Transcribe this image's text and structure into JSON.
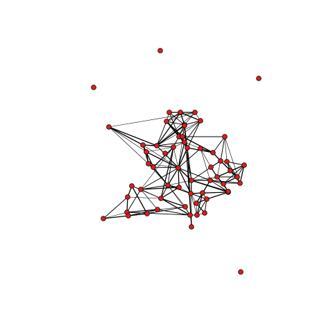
{
  "graph": {
    "node_color": "#e31a1c",
    "node_stroke": "#000000",
    "edge_color": "#000000",
    "nodes": [
      {
        "id": "n1"
      },
      {
        "id": "n2"
      },
      {
        "id": "n3"
      },
      {
        "id": "n4"
      },
      {
        "id": "n5"
      },
      {
        "id": "n6"
      },
      {
        "id": "n7"
      },
      {
        "id": "n8"
      },
      {
        "id": "n9"
      },
      {
        "id": "n10"
      },
      {
        "id": "n11"
      },
      {
        "id": "n12"
      },
      {
        "id": "n13"
      },
      {
        "id": "n14"
      },
      {
        "id": "n15"
      },
      {
        "id": "n16"
      },
      {
        "id": "n17"
      },
      {
        "id": "n18"
      },
      {
        "id": "n19"
      },
      {
        "id": "n20"
      },
      {
        "id": "n21"
      },
      {
        "id": "n22"
      },
      {
        "id": "n23"
      },
      {
        "id": "n24"
      },
      {
        "id": "n25"
      },
      {
        "id": "n26"
      },
      {
        "id": "n27"
      },
      {
        "id": "n28"
      },
      {
        "id": "n29"
      },
      {
        "id": "n30"
      },
      {
        "id": "n31"
      },
      {
        "id": "n32"
      },
      {
        "id": "n33"
      },
      {
        "id": "n34"
      },
      {
        "id": "n35"
      },
      {
        "id": "n36"
      },
      {
        "id": "n37"
      },
      {
        "id": "n38"
      },
      {
        "id": "n39"
      },
      {
        "id": "n40"
      },
      {
        "id": "n41"
      },
      {
        "id": "n42"
      },
      {
        "id": "n43"
      },
      {
        "id": "n44"
      },
      {
        "id": "n45"
      },
      {
        "id": "n46"
      },
      {
        "id": "n47"
      },
      {
        "id": "n48"
      },
      {
        "id": "n49"
      },
      {
        "id": "n50"
      },
      {
        "id": "n51"
      },
      {
        "id": "n52"
      },
      {
        "id": "n53"
      },
      {
        "id": "n54"
      },
      {
        "id": "n55"
      },
      {
        "id": "n56"
      },
      {
        "id": "n57"
      },
      {
        "id": "n58"
      },
      {
        "id": "n59"
      },
      {
        "id": "n60"
      }
    ],
    "edges": [
      [
        "n7",
        "n12"
      ],
      [
        "n5",
        "n6"
      ],
      [
        "n5",
        "n7"
      ],
      [
        "n5",
        "n8"
      ],
      [
        "n6",
        "n7"
      ],
      [
        "n6",
        "n8"
      ],
      [
        "n7",
        "n8"
      ],
      [
        "n5",
        "n9"
      ],
      [
        "n6",
        "n9"
      ],
      [
        "n7",
        "n9"
      ],
      [
        "n8",
        "n9"
      ],
      [
        "n6",
        "n10"
      ],
      [
        "n7",
        "n10"
      ],
      [
        "n9",
        "n10"
      ],
      [
        "n9",
        "n11"
      ],
      [
        "n10",
        "n11"
      ],
      [
        "n5",
        "n11"
      ],
      [
        "n8",
        "n11"
      ],
      [
        "n11",
        "n21"
      ],
      [
        "n10",
        "n21"
      ],
      [
        "n6",
        "n14"
      ],
      [
        "n7",
        "n14"
      ],
      [
        "n8",
        "n14"
      ],
      [
        "n9",
        "n14"
      ],
      [
        "n10",
        "n14"
      ],
      [
        "n14",
        "n21"
      ],
      [
        "n8",
        "n23"
      ],
      [
        "n9",
        "n23"
      ],
      [
        "n11",
        "n23"
      ],
      [
        "n12",
        "n13"
      ],
      [
        "n12",
        "n15"
      ],
      [
        "n13",
        "n15"
      ],
      [
        "n13",
        "n14"
      ],
      [
        "n12",
        "n16"
      ],
      [
        "n13",
        "n16"
      ],
      [
        "n15",
        "n16"
      ],
      [
        "n15",
        "n17"
      ],
      [
        "n16",
        "n17"
      ],
      [
        "n13",
        "n17"
      ],
      [
        "n14",
        "n19"
      ],
      [
        "n13",
        "n19"
      ],
      [
        "n17",
        "n19"
      ],
      [
        "n19",
        "n20"
      ],
      [
        "n17",
        "n20"
      ],
      [
        "n15",
        "n20"
      ],
      [
        "n16",
        "n20"
      ],
      [
        "n14",
        "n20"
      ],
      [
        "n20",
        "n21"
      ],
      [
        "n19",
        "n21"
      ],
      [
        "n20",
        "n22"
      ],
      [
        "n21",
        "n22"
      ],
      [
        "n22",
        "n23"
      ],
      [
        "n23",
        "n26"
      ],
      [
        "n22",
        "n25"
      ],
      [
        "n21",
        "n24"
      ],
      [
        "n20",
        "n24"
      ],
      [
        "n24",
        "n25"
      ],
      [
        "n24",
        "n27"
      ],
      [
        "n25",
        "n26"
      ],
      [
        "n25",
        "n28"
      ],
      [
        "n26",
        "n29"
      ],
      [
        "n26",
        "n28"
      ],
      [
        "n27",
        "n28"
      ],
      [
        "n28",
        "n29"
      ],
      [
        "n28",
        "n30"
      ],
      [
        "n29",
        "n30"
      ],
      [
        "n30",
        "n31"
      ],
      [
        "n29",
        "n31"
      ],
      [
        "n28",
        "n32"
      ],
      [
        "n30",
        "n32"
      ],
      [
        "n31",
        "n32"
      ],
      [
        "n31",
        "n33"
      ],
      [
        "n32",
        "n33"
      ],
      [
        "n30",
        "n33"
      ],
      [
        "n27",
        "n34"
      ],
      [
        "n28",
        "n34"
      ],
      [
        "n32",
        "n34"
      ],
      [
        "n34",
        "n35"
      ],
      [
        "n33",
        "n35"
      ],
      [
        "n31",
        "n35"
      ],
      [
        "n32",
        "n35"
      ],
      [
        "n34",
        "n36"
      ],
      [
        "n35",
        "n36"
      ],
      [
        "n33",
        "n36"
      ],
      [
        "n24",
        "n36"
      ],
      [
        "n20",
        "n36"
      ],
      [
        "n20",
        "n37"
      ],
      [
        "n22",
        "n37"
      ],
      [
        "n27",
        "n37"
      ],
      [
        "n36",
        "n37"
      ],
      [
        "n34",
        "n37"
      ],
      [
        "n19",
        "n38"
      ],
      [
        "n20",
        "n38"
      ],
      [
        "n37",
        "n38"
      ],
      [
        "n38",
        "n39"
      ],
      [
        "n20",
        "n39"
      ],
      [
        "n19",
        "n40"
      ],
      [
        "n38",
        "n40"
      ],
      [
        "n39",
        "n40"
      ],
      [
        "n40",
        "n41"
      ],
      [
        "n38",
        "n41"
      ],
      [
        "n39",
        "n41"
      ],
      [
        "n40",
        "n42"
      ],
      [
        "n41",
        "n42"
      ],
      [
        "n42",
        "n43"
      ],
      [
        "n41",
        "n43"
      ],
      [
        "n40",
        "n44"
      ],
      [
        "n43",
        "n44"
      ],
      [
        "n44",
        "n45"
      ],
      [
        "n43",
        "n45"
      ],
      [
        "n44",
        "n46"
      ],
      [
        "n45",
        "n46"
      ],
      [
        "n46",
        "n47"
      ],
      [
        "n45",
        "n47"
      ],
      [
        "n47",
        "n48"
      ],
      [
        "n46",
        "n48"
      ],
      [
        "n44",
        "n48"
      ],
      [
        "n48",
        "n49"
      ],
      [
        "n47",
        "n49"
      ],
      [
        "n41",
        "n49"
      ],
      [
        "n49",
        "n50"
      ],
      [
        "n48",
        "n50"
      ],
      [
        "n41",
        "n50"
      ],
      [
        "n38",
        "n50"
      ],
      [
        "n37",
        "n51"
      ],
      [
        "n38",
        "n51"
      ],
      [
        "n39",
        "n51"
      ],
      [
        "n51",
        "n52"
      ],
      [
        "n37",
        "n52"
      ],
      [
        "n36",
        "n52"
      ],
      [
        "n52",
        "n53"
      ],
      [
        "n51",
        "n53"
      ],
      [
        "n36",
        "n53"
      ],
      [
        "n53",
        "n54"
      ],
      [
        "n52",
        "n54"
      ],
      [
        "n51",
        "n55"
      ],
      [
        "n53",
        "n55"
      ],
      [
        "n54",
        "n55"
      ],
      [
        "n55",
        "n56"
      ],
      [
        "n54",
        "n56"
      ],
      [
        "n53",
        "n56"
      ],
      [
        "n51",
        "n56"
      ],
      [
        "n50",
        "n56"
      ],
      [
        "n55",
        "n57"
      ],
      [
        "n56",
        "n57"
      ],
      [
        "n54",
        "n57"
      ],
      [
        "n37",
        "n58"
      ],
      [
        "n36",
        "n58"
      ],
      [
        "n35",
        "n58"
      ],
      [
        "n52",
        "n58"
      ],
      [
        "n20",
        "n59"
      ],
      [
        "n19",
        "n59"
      ],
      [
        "n14",
        "n59"
      ],
      [
        "n22",
        "n59"
      ],
      [
        "n37",
        "n59"
      ],
      [
        "n22",
        "n60"
      ],
      [
        "n37",
        "n60"
      ],
      [
        "n59",
        "n60"
      ],
      [
        "n20",
        "n51"
      ],
      [
        "n14",
        "n37"
      ],
      [
        "n21",
        "n37"
      ],
      [
        "n23",
        "n25"
      ],
      [
        "n11",
        "n22"
      ],
      [
        "n10",
        "n20"
      ],
      [
        "n8",
        "n21"
      ],
      [
        "n13",
        "n20"
      ],
      [
        "n20",
        "n40"
      ],
      [
        "n19",
        "n41"
      ],
      [
        "n38",
        "n49"
      ],
      [
        "n44",
        "n50"
      ],
      [
        "n42",
        "n47"
      ],
      [
        "n40",
        "n48"
      ],
      [
        "n51",
        "n54"
      ],
      [
        "n36",
        "n55"
      ],
      [
        "n35",
        "n52"
      ],
      [
        "n34",
        "n58"
      ],
      [
        "n31",
        "n34"
      ],
      [
        "n26",
        "n33"
      ],
      [
        "n29",
        "n32"
      ],
      [
        "n12",
        "n14"
      ],
      [
        "n15",
        "n19"
      ],
      [
        "n16",
        "n38"
      ],
      [
        "n17",
        "n38"
      ]
    ]
  }
}
